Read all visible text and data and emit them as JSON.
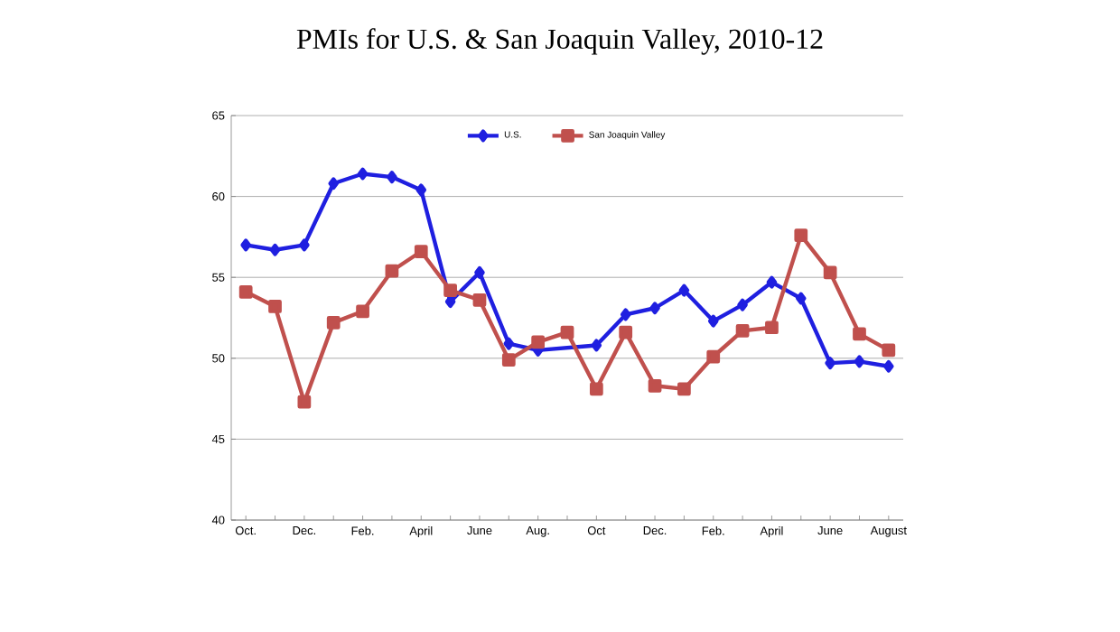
{
  "chart_data": {
    "type": "line",
    "title": "PMIs for U.S. & San Joaquin Valley, 2010-12",
    "categories": [
      "Oct.",
      null,
      "Dec.",
      null,
      "Feb.",
      null,
      "April",
      null,
      "June",
      null,
      "Aug.",
      null,
      "Oct",
      null,
      "Dec.",
      null,
      "Feb.",
      null,
      "April",
      null,
      "June",
      null,
      "August"
    ],
    "series": [
      {
        "name": "U.S.",
        "color": "#1f1fe0",
        "marker": "diamond",
        "values": [
          57.0,
          56.7,
          57.0,
          60.8,
          61.4,
          61.2,
          60.4,
          53.5,
          55.3,
          50.9,
          50.5,
          null,
          50.8,
          52.7,
          53.1,
          54.2,
          52.3,
          53.3,
          54.7,
          53.7,
          49.7,
          49.8,
          49.5
        ]
      },
      {
        "name": "San Joaquin Valley",
        "color": "#c0504d",
        "marker": "square",
        "values": [
          54.1,
          53.2,
          47.3,
          52.2,
          52.9,
          55.4,
          56.6,
          54.2,
          53.6,
          49.9,
          51.0,
          51.6,
          48.1,
          51.6,
          48.3,
          48.1,
          50.1,
          51.7,
          51.9,
          57.6,
          55.3,
          51.5,
          50.5
        ]
      }
    ],
    "ylim": [
      40,
      65
    ],
    "yticks": [
      40,
      45,
      50,
      55,
      60,
      65
    ],
    "grid": "y",
    "legend": "top"
  }
}
